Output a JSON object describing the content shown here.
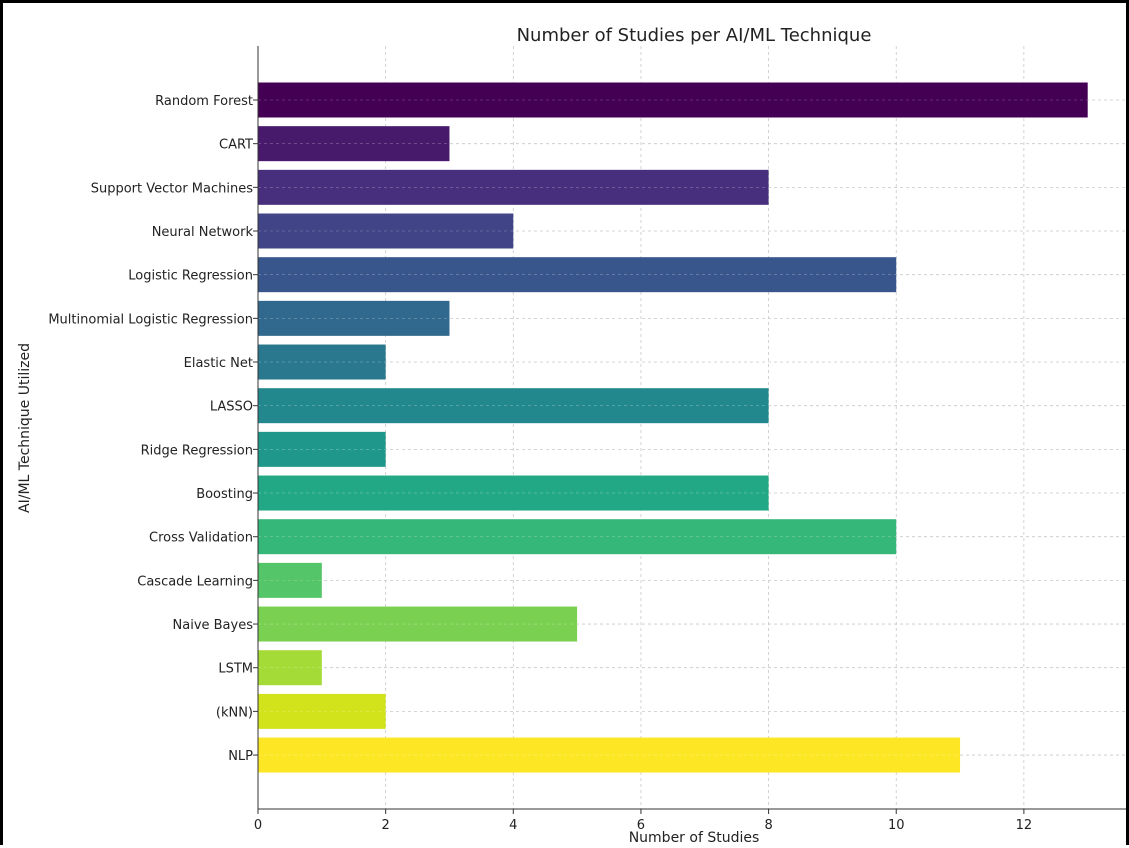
{
  "chart_data": {
    "type": "bar",
    "orientation": "horizontal",
    "title": "Number of Studies per AI/ML Technique",
    "xlabel": "Number of Studies",
    "ylabel": "AI/ML Technique Utilized",
    "xlim": [
      0,
      13.6
    ],
    "xticks": [
      "0",
      "2",
      "4",
      "6",
      "8",
      "10",
      "12"
    ],
    "grid": true,
    "colormap": "viridis",
    "categories": [
      "Random Forest",
      "CART",
      "Support Vector Machines",
      "Neural Network",
      "Logistic Regression",
      "Multinomial Logistic Regression",
      "Elastic Net",
      "LASSO",
      "Ridge Regression",
      "Boosting",
      "Cross Validation",
      "Cascade Learning",
      "Naive Bayes",
      "LSTM",
      "(kNN)",
      "NLP"
    ],
    "values": [
      13,
      3,
      8,
      4,
      10,
      3,
      2,
      8,
      2,
      8,
      10,
      1,
      5,
      1,
      2,
      11
    ],
    "colors": [
      "#440154",
      "#481a6c",
      "#472f7d",
      "#414487",
      "#39568c",
      "#31688e",
      "#2a788e",
      "#23888e",
      "#1f988b",
      "#22a884",
      "#35b779",
      "#54c568",
      "#7ad151",
      "#a5db36",
      "#d2e21b",
      "#fde725"
    ]
  }
}
